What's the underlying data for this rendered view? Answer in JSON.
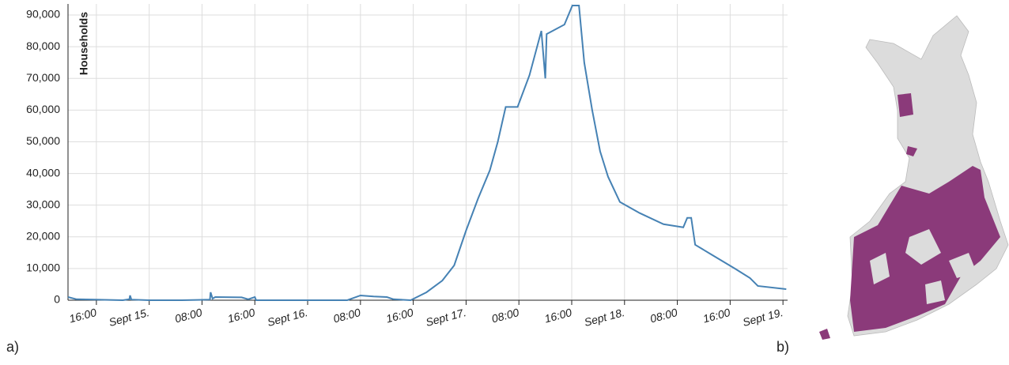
{
  "chart_data": {
    "type": "line",
    "y_label": "Households",
    "x": [
      -12.3,
      -11,
      -8,
      -4,
      -3,
      -2.9,
      -2.7,
      0,
      5,
      9.2,
      9.3,
      9.6,
      10,
      14,
      15,
      16,
      16.2,
      20,
      30,
      32,
      34,
      36,
      37,
      39.6,
      42.0,
      44.4,
      46.2,
      48.0,
      49.8,
      51.6,
      52.8,
      54.0,
      55.8,
      57.6,
      59.4,
      60.0,
      60.2,
      61.1,
      62.9,
      64.1,
      65.1,
      65.9,
      67.1,
      68.3,
      69.5,
      71.3,
      74.3,
      77.9,
      80.9,
      81.5,
      82.1,
      82.7,
      85.1,
      88.7,
      91.0,
      92.2,
      96.5
    ],
    "series": [
      {
        "color": "#4682b4",
        "values": [
          1000,
          300,
          200,
          0,
          300,
          1500,
          200,
          0,
          0,
          200,
          2500,
          500,
          1000,
          900,
          300,
          1000,
          0,
          0,
          0,
          1500,
          1200,
          1000,
          300,
          0,
          2500,
          6200,
          11000,
          22000,
          32000,
          41000,
          50000,
          61000,
          61000,
          71000,
          85000,
          70000,
          84000,
          85000,
          87000,
          93000,
          93000,
          75000,
          60000,
          47000,
          39000,
          31000,
          27500,
          24000,
          23000,
          26000,
          26000,
          17500,
          14500,
          10000,
          7000,
          4500,
          3500
        ]
      }
    ],
    "xlim": [
      -12.3,
      96.7
    ],
    "xticks": [
      {
        "value": -8,
        "label": "16:00"
      },
      {
        "value": 0,
        "label": "Sept 15."
      },
      {
        "value": 8,
        "label": "08:00"
      },
      {
        "value": 16,
        "label": "16:00"
      },
      {
        "value": 24,
        "label": "Sept 16."
      },
      {
        "value": 32,
        "label": "08:00"
      },
      {
        "value": 40,
        "label": "16:00"
      },
      {
        "value": 48,
        "label": "Sept 17."
      },
      {
        "value": 56,
        "label": "08:00"
      },
      {
        "value": 64,
        "label": "16:00"
      },
      {
        "value": 72,
        "label": "Sept 18."
      },
      {
        "value": 80,
        "label": "08:00"
      },
      {
        "value": 88,
        "label": "16:00"
      },
      {
        "value": 96,
        "label": "Sept 19."
      }
    ],
    "ylim": [
      0,
      93500
    ],
    "yticks": [
      0,
      {
        "value": 10000,
        "label": "10,000"
      },
      {
        "value": 20000,
        "label": "20,000"
      },
      {
        "value": 30000,
        "label": "30,000"
      },
      {
        "value": 40000,
        "label": "40,000"
      },
      {
        "value": 50000,
        "label": "50,000"
      },
      {
        "value": 60000,
        "label": "60,000"
      },
      {
        "value": 70000,
        "label": "70,000"
      },
      {
        "value": 80000,
        "label": "80,000"
      },
      {
        "value": 90000,
        "label": "90,000"
      }
    ],
    "grid": true
  },
  "panels": {
    "a": "a)",
    "b": "b)"
  }
}
